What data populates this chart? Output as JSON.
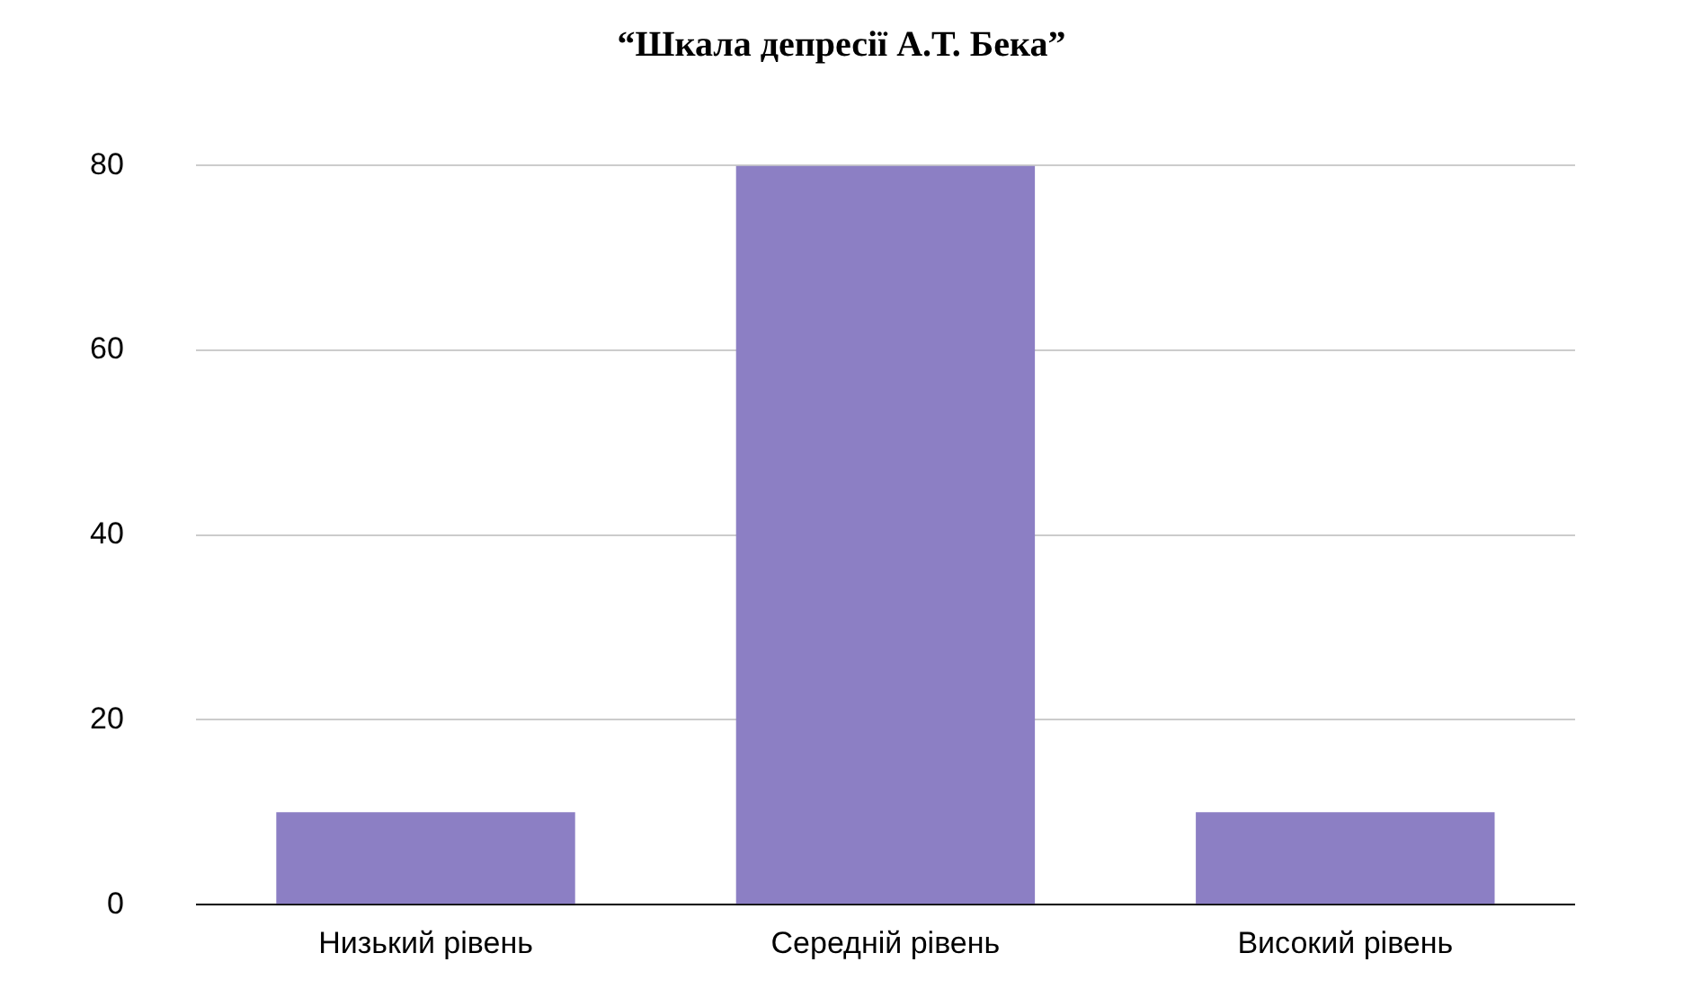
{
  "chart_data": {
    "type": "bar",
    "title": "“Шкала депресії А.Т. Бека”",
    "categories": [
      "Низький рівень",
      "Середній рівень",
      "Високий рівень"
    ],
    "values": [
      10,
      80,
      10
    ],
    "color": "#8c7fc4",
    "ylim": [
      0,
      80
    ],
    "yticks": [
      0,
      20,
      40,
      60,
      80
    ],
    "grid": "y"
  }
}
